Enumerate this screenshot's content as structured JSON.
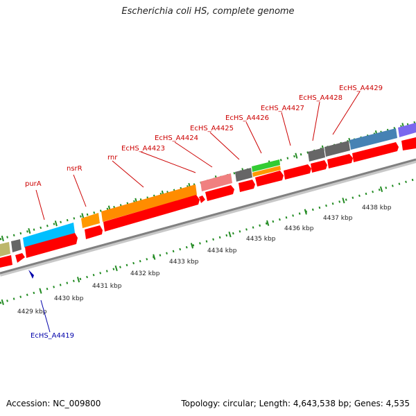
{
  "title": "Escherichia coli HS, complete genome",
  "footer": {
    "accession": "Accession: NC_009800",
    "summary": "Topology: circular; Length: 4,643,538 bp; Genes: 4,535"
  },
  "colors": {
    "forward_gene_label": "#cc0000",
    "reverse_gene_label": "#0000aa",
    "cds_red": "#ff0000",
    "backbone": "#808080",
    "tick": "#228b22",
    "pur_cyan": "#00bfff",
    "nsr_orange": "#ff9900",
    "rnr_orange": "#ff8c00",
    "pink": "#f08080",
    "dark_gray": "#666666",
    "green": "#33cc33",
    "steel_blue": "#4682b4",
    "violet": "#7b68ee",
    "khaki": "#bdb76b"
  },
  "scale_labels": [
    "4429 kbp",
    "4430 kbp",
    "4431 kbp",
    "4432 kbp",
    "4433 kbp",
    "4434 kbp",
    "4435 kbp",
    "4436 kbp",
    "4437 kbp",
    "4438 kbp"
  ],
  "gene_labels_forward": [
    "purA",
    "nsrR",
    "rnr",
    "EcHS_A4423",
    "EcHS_A4424",
    "EcHS_A4425",
    "EcHS_A4426",
    "EcHS_A4427",
    "EcHS_A4428",
    "EcHS_A4429"
  ],
  "gene_labels_reverse": [
    "EcHS_A4419"
  ]
}
